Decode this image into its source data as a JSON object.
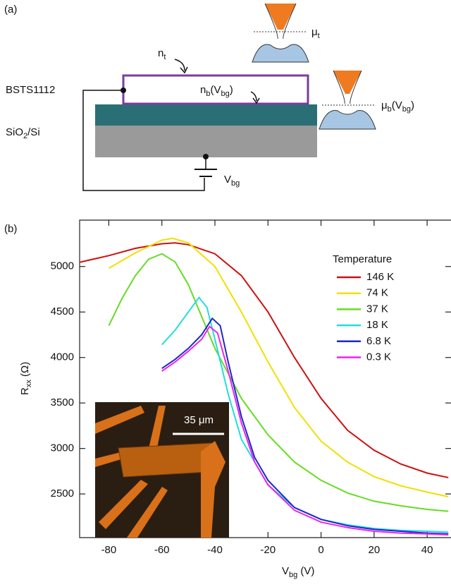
{
  "panel_a": {
    "label": "(a)",
    "bsts": "BSTS1112",
    "substrate": [
      "SiO",
      "2",
      "/Si"
    ],
    "n_top": [
      "n",
      "t"
    ],
    "n_bottom": [
      "n",
      "b",
      "(V",
      "bg",
      ")"
    ],
    "mu_top": [
      "μ",
      "t"
    ],
    "mu_bottom": [
      "μ",
      "b",
      "(V",
      "bg",
      ")"
    ],
    "gate": [
      "V",
      "bg"
    ]
  },
  "chart_data": {
    "type": "line",
    "panel_label": "(b)",
    "xlabel": [
      "V",
      "bg",
      " (V)"
    ],
    "ylabel": [
      "R",
      "xx",
      " (Ω)"
    ],
    "legend_title": "Temperature",
    "inset_scale": "35 μm",
    "xlim": [
      -91,
      49
    ],
    "ylim": [
      2020,
      5510
    ],
    "xticks": [
      -80,
      -60,
      -40,
      -20,
      0,
      20,
      40
    ],
    "yticks": [
      2500,
      3000,
      3500,
      4000,
      4500,
      5000
    ],
    "series": [
      {
        "name": "146 K",
        "color": "#cc1111",
        "x": [
          -92,
          -80,
          -70,
          -60,
          -55,
          -50,
          -40,
          -30,
          -20,
          -10,
          0,
          10,
          20,
          30,
          40,
          48
        ],
        "values": [
          5040,
          5120,
          5200,
          5250,
          5260,
          5240,
          5140,
          4900,
          4500,
          4000,
          3550,
          3200,
          2980,
          2830,
          2730,
          2680
        ]
      },
      {
        "name": "74 K",
        "color": "#f0e000",
        "x": [
          -80,
          -70,
          -60,
          -56,
          -50,
          -40,
          -30,
          -20,
          -10,
          0,
          10,
          20,
          30,
          40,
          48
        ],
        "values": [
          4980,
          5150,
          5290,
          5310,
          5260,
          5000,
          4500,
          3950,
          3450,
          3080,
          2850,
          2690,
          2590,
          2520,
          2470
        ]
      },
      {
        "name": "37 K",
        "color": "#66dd22",
        "x": [
          -80,
          -75,
          -70,
          -65,
          -60,
          -55,
          -50,
          -45,
          -40,
          -30,
          -20,
          -10,
          0,
          10,
          20,
          30,
          40,
          48
        ],
        "values": [
          4350,
          4650,
          4900,
          5080,
          5140,
          5050,
          4800,
          4450,
          4100,
          3550,
          3150,
          2850,
          2650,
          2510,
          2420,
          2370,
          2330,
          2310
        ]
      },
      {
        "name": "18 K",
        "color": "#22dddd",
        "x": [
          -60,
          -55,
          -50,
          -46,
          -43,
          -40,
          -35,
          -30,
          -20,
          -10,
          0,
          10,
          20,
          30,
          40,
          48
        ],
        "values": [
          4140,
          4300,
          4500,
          4660,
          4550,
          4200,
          3600,
          3100,
          2600,
          2350,
          2220,
          2160,
          2120,
          2100,
          2090,
          2080
        ]
      },
      {
        "name": "6.8 K",
        "color": "#1a2acc",
        "x": [
          -60,
          -55,
          -50,
          -45,
          -41,
          -38,
          -35,
          -30,
          -25,
          -20,
          -10,
          0,
          10,
          20,
          30,
          40,
          48
        ],
        "values": [
          3880,
          3980,
          4100,
          4250,
          4430,
          4350,
          3950,
          3350,
          2900,
          2650,
          2350,
          2220,
          2150,
          2110,
          2090,
          2070,
          2060
        ]
      },
      {
        "name": "0.3 K",
        "color": "#ee22ee",
        "x": [
          -60,
          -55,
          -50,
          -45,
          -42,
          -39,
          -35,
          -30,
          -25,
          -20,
          -10,
          0,
          10,
          20,
          30,
          40,
          48
        ],
        "values": [
          3850,
          3950,
          4070,
          4200,
          4340,
          4270,
          3850,
          3280,
          2850,
          2600,
          2320,
          2190,
          2130,
          2090,
          2070,
          2060,
          2050
        ]
      }
    ]
  }
}
